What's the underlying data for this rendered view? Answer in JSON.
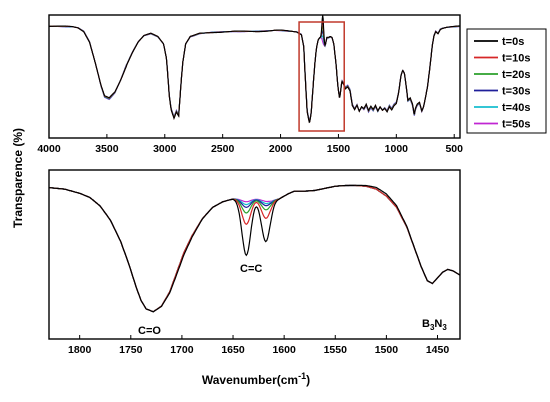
{
  "figure": {
    "ylabel": "Transparence (%)",
    "xlabel_main": "Wavenumber(cm",
    "xlabel_exp": "-1",
    "xlabel_close": ")"
  },
  "chart_data": [
    {
      "type": "line",
      "panel": "top",
      "xlim": [
        4000,
        450
      ],
      "xticks": [
        4000,
        3500,
        3000,
        2500,
        2000,
        1500,
        1000,
        500
      ],
      "x_reversed": true,
      "highlight_box": {
        "x_range": [
          1840,
          1450
        ],
        "color": "#c0392b"
      },
      "legend": {
        "placement": "right-outside",
        "entries": [
          "t=0s",
          "t=10s",
          "t=20s",
          "t=30s",
          "t=40s",
          "t=50s"
        ]
      }
    },
    {
      "type": "line",
      "panel": "bottom",
      "xlim": [
        1830,
        1428
      ],
      "xticks": [
        1800,
        1750,
        1700,
        1650,
        1600,
        1550,
        1500,
        1450
      ],
      "x_reversed": true,
      "annotations": {
        "carbonyl": "C=O",
        "vinyl": "C=C",
        "triazine_main": "B",
        "triazine_sub1": "3",
        "triazine_mid": "N",
        "triazine_sub2": "3"
      }
    }
  ],
  "series_colors": [
    "#000000",
    "#d62728",
    "#2ca02c",
    "#1f1f9a",
    "#17becf",
    "#c026d3"
  ],
  "top_curve": [
    [
      4000,
      3.0
    ],
    [
      3900,
      3.2
    ],
    [
      3800,
      3.5
    ],
    [
      3750,
      4.5
    ],
    [
      3700,
      8
    ],
    [
      3650,
      18
    ],
    [
      3600,
      38
    ],
    [
      3550,
      60
    ],
    [
      3520,
      70
    ],
    [
      3480,
      72
    ],
    [
      3430,
      66
    ],
    [
      3380,
      54
    ],
    [
      3330,
      40
    ],
    [
      3280,
      28
    ],
    [
      3230,
      18
    ],
    [
      3180,
      12
    ],
    [
      3120,
      10
    ],
    [
      3060,
      13
    ],
    [
      3010,
      20
    ],
    [
      2985,
      34
    ],
    [
      2960,
      70
    ],
    [
      2945,
      82
    ],
    [
      2920,
      90
    ],
    [
      2900,
      84
    ],
    [
      2880,
      88
    ],
    [
      2860,
      58
    ],
    [
      2845,
      38
    ],
    [
      2820,
      20
    ],
    [
      2780,
      13
    ],
    [
      2750,
      12
    ],
    [
      2700,
      10
    ],
    [
      2600,
      9
    ],
    [
      2500,
      8.5
    ],
    [
      2400,
      8
    ],
    [
      2300,
      8
    ],
    [
      2200,
      8
    ],
    [
      2100,
      7.5
    ],
    [
      2050,
      7
    ],
    [
      2000,
      7
    ],
    [
      1950,
      7.5
    ],
    [
      1900,
      8
    ],
    [
      1860,
      8.5
    ],
    [
      1820,
      11
    ],
    [
      1800,
      22
    ],
    [
      1785,
      55
    ],
    [
      1770,
      84
    ],
    [
      1750,
      95
    ],
    [
      1735,
      85
    ],
    [
      1720,
      62
    ],
    [
      1705,
      40
    ],
    [
      1690,
      24
    ],
    [
      1675,
      16
    ],
    [
      1660,
      14
    ],
    [
      1645,
      14
    ],
    [
      1630,
      20
    ],
    [
      1615,
      22
    ],
    [
      1600,
      14
    ],
    [
      1585,
      14
    ],
    [
      1570,
      13
    ],
    [
      1555,
      14
    ],
    [
      1540,
      20
    ],
    [
      1520,
      40
    ],
    [
      1505,
      60
    ],
    [
      1490,
      72
    ],
    [
      1470,
      55
    ],
    [
      1455,
      58
    ],
    [
      1440,
      62
    ],
    [
      1420,
      60
    ],
    [
      1400,
      64
    ],
    [
      1380,
      78
    ],
    [
      1360,
      82
    ],
    [
      1340,
      78
    ],
    [
      1320,
      84
    ],
    [
      1300,
      80
    ],
    [
      1280,
      82
    ],
    [
      1260,
      78
    ],
    [
      1240,
      84
    ],
    [
      1220,
      80
    ],
    [
      1200,
      83
    ],
    [
      1180,
      79
    ],
    [
      1160,
      84
    ],
    [
      1140,
      80
    ],
    [
      1120,
      83
    ],
    [
      1100,
      81
    ],
    [
      1080,
      84
    ],
    [
      1060,
      79
    ],
    [
      1040,
      82
    ],
    [
      1020,
      78
    ],
    [
      1000,
      76
    ],
    [
      980,
      66
    ],
    [
      960,
      50
    ],
    [
      945,
      45
    ],
    [
      930,
      48
    ],
    [
      915,
      60
    ],
    [
      900,
      74
    ],
    [
      880,
      72
    ],
    [
      860,
      78
    ],
    [
      845,
      88
    ],
    [
      835,
      82
    ],
    [
      820,
      78
    ],
    [
      800,
      76
    ],
    [
      780,
      84
    ],
    [
      765,
      80
    ],
    [
      750,
      72
    ],
    [
      730,
      60
    ],
    [
      710,
      42
    ],
    [
      690,
      22
    ],
    [
      675,
      12
    ],
    [
      660,
      8
    ],
    [
      640,
      10
    ],
    [
      620,
      6
    ],
    [
      600,
      5
    ],
    [
      560,
      4
    ],
    [
      500,
      3.5
    ],
    [
      450,
      3
    ]
  ],
  "bottom_curve": [
    [
      1830,
      4
    ],
    [
      1815,
      5
    ],
    [
      1800,
      8
    ],
    [
      1790,
      11
    ],
    [
      1780,
      17
    ],
    [
      1770,
      27
    ],
    [
      1760,
      42
    ],
    [
      1752,
      58
    ],
    [
      1745,
      74
    ],
    [
      1740,
      84
    ],
    [
      1735,
      90
    ],
    [
      1728,
      92
    ],
    [
      1720,
      88
    ],
    [
      1712,
      78
    ],
    [
      1705,
      64
    ],
    [
      1698,
      50
    ],
    [
      1690,
      38
    ],
    [
      1680,
      26
    ],
    [
      1670,
      18
    ],
    [
      1660,
      14
    ],
    [
      1650,
      12
    ],
    [
      1640,
      12
    ],
    [
      1630,
      12
    ],
    [
      1620,
      12
    ],
    [
      1612,
      13
    ],
    [
      1605,
      12
    ],
    [
      1600,
      10
    ],
    [
      1595,
      8
    ],
    [
      1590,
      6.5
    ],
    [
      1580,
      6.5
    ],
    [
      1570,
      6
    ],
    [
      1560,
      4.5
    ],
    [
      1550,
      3
    ],
    [
      1540,
      2.5
    ],
    [
      1530,
      2.5
    ],
    [
      1520,
      3
    ],
    [
      1510,
      5
    ],
    [
      1500,
      10
    ],
    [
      1490,
      18
    ],
    [
      1480,
      32
    ],
    [
      1472,
      48
    ],
    [
      1466,
      60
    ],
    [
      1460,
      70
    ],
    [
      1455,
      72
    ],
    [
      1450,
      68
    ],
    [
      1445,
      64
    ],
    [
      1440,
      62
    ],
    [
      1435,
      63
    ],
    [
      1428,
      66
    ]
  ],
  "vinyl_dip_depth": [
    40,
    18,
    10,
    6,
    4,
    2
  ]
}
